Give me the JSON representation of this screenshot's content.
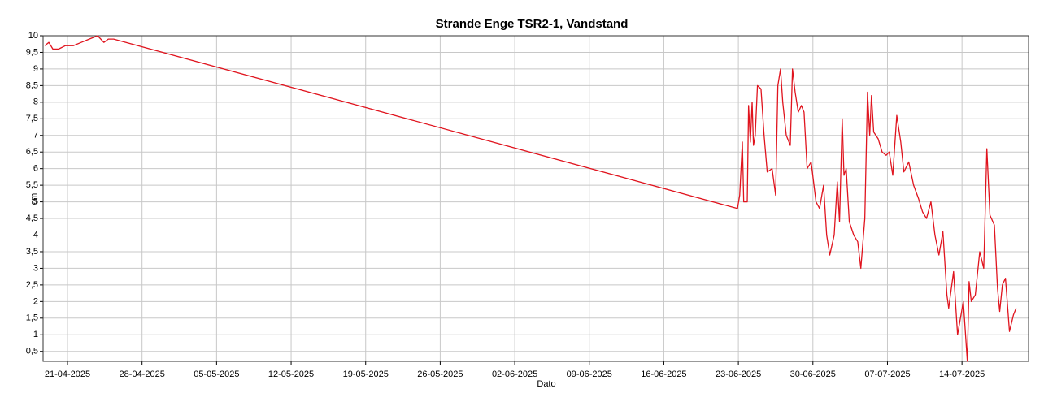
{
  "chart_data": {
    "type": "line",
    "title": "Strande Enge TSR2-1, Vandstand",
    "xlabel": "Dato",
    "ylabel": "cm",
    "x": [
      "2025-04-18T21:00",
      "2025-04-19T06:00",
      "2025-04-19T15:00",
      "2025-04-20T04:00",
      "2025-04-20T19:00",
      "2025-04-21T13:00",
      "2025-04-22T07:00",
      "2025-04-23T01:00",
      "2025-04-23T20:00",
      "2025-04-24T10:00",
      "2025-04-24T20:00",
      "2025-04-25T08:00",
      "2025-06-22T22:00",
      "2025-06-23T03:00",
      "2025-06-23T09:00",
      "2025-06-23T12:00",
      "2025-06-23T20:00",
      "2025-06-23T23:00",
      "2025-06-24T03:00",
      "2025-06-24T07:00",
      "2025-06-24T10:00",
      "2025-06-24T14:00",
      "2025-06-24T19:00",
      "2025-06-25T03:00",
      "2025-06-25T10:00",
      "2025-06-25T17:00",
      "2025-06-26T04:00",
      "2025-06-26T12:00",
      "2025-06-26T17:00",
      "2025-06-26T23:00",
      "2025-06-27T04:00",
      "2025-06-27T12:00",
      "2025-06-27T21:00",
      "2025-06-28T02:00",
      "2025-06-28T08:00",
      "2025-06-28T15:00",
      "2025-06-28T22:00",
      "2025-06-29T04:00",
      "2025-06-29T11:00",
      "2025-06-29T20:00",
      "2025-06-30T07:00",
      "2025-06-30T15:00",
      "2025-07-01T00:00",
      "2025-07-01T07:00",
      "2025-07-01T14:00",
      "2025-07-02T00:00",
      "2025-07-02T07:00",
      "2025-07-02T12:00",
      "2025-07-02T18:00",
      "2025-07-02T22:00",
      "2025-07-03T03:00",
      "2025-07-03T10:00",
      "2025-07-03T20:00",
      "2025-07-04T05:00",
      "2025-07-04T12:00",
      "2025-07-04T21:00",
      "2025-07-05T03:00",
      "2025-07-05T08:00",
      "2025-07-05T12:00",
      "2025-07-05T17:00",
      "2025-07-06T03:00",
      "2025-07-06T12:00",
      "2025-07-06T21:00",
      "2025-07-07T04:00",
      "2025-07-07T12:00",
      "2025-07-07T21:00",
      "2025-07-08T06:00",
      "2025-07-08T13:00",
      "2025-07-09T00:00",
      "2025-07-09T11:00",
      "2025-07-09T22:00",
      "2025-07-10T07:00",
      "2025-07-10T16:00",
      "2025-07-11T02:00",
      "2025-07-11T11:00",
      "2025-07-11T20:00",
      "2025-07-12T05:00",
      "2025-07-12T14:00",
      "2025-07-12T18:00",
      "2025-07-13T05:00",
      "2025-07-13T14:00",
      "2025-07-14T03:00",
      "2025-07-14T12:00",
      "2025-07-14T16:00",
      "2025-07-14T21:00",
      "2025-07-15T06:00",
      "2025-07-15T16:00",
      "2025-07-16T01:00",
      "2025-07-16T08:00",
      "2025-07-16T15:00",
      "2025-07-17T01:00",
      "2025-07-17T08:00",
      "2025-07-17T13:00",
      "2025-07-17T19:00",
      "2025-07-18T02:00",
      "2025-07-18T11:00",
      "2025-07-18T20:00",
      "2025-07-19T02:00"
    ],
    "series": [
      {
        "name": "Vandstand",
        "color": "#e0141e",
        "values": [
          9.7,
          9.8,
          9.6,
          9.6,
          9.7,
          9.7,
          9.8,
          9.9,
          10.0,
          9.8,
          9.9,
          9.9,
          4.8,
          5.2,
          6.8,
          5.0,
          5.0,
          7.9,
          6.8,
          8.0,
          6.7,
          7.0,
          8.5,
          8.4,
          7.0,
          5.9,
          6.0,
          5.2,
          8.5,
          9.0,
          8.0,
          7.0,
          6.7,
          9.0,
          8.3,
          7.7,
          7.9,
          7.7,
          6.0,
          6.2,
          5.0,
          4.8,
          5.5,
          4.0,
          3.4,
          4.0,
          5.6,
          4.4,
          7.5,
          5.8,
          6.0,
          4.4,
          4.0,
          3.8,
          3.0,
          4.5,
          8.3,
          7.0,
          8.2,
          7.1,
          6.9,
          6.5,
          6.4,
          6.5,
          5.8,
          7.6,
          6.8,
          5.9,
          6.2,
          5.5,
          5.1,
          4.7,
          4.5,
          5.0,
          4.0,
          3.4,
          4.1,
          2.2,
          1.8,
          2.9,
          1.0,
          2.0,
          0.2,
          2.6,
          2.0,
          2.2,
          3.5,
          3.0,
          6.6,
          4.6,
          4.3,
          2.4,
          1.7,
          2.5,
          2.7,
          1.1,
          1.6,
          1.8
        ]
      }
    ],
    "xlim": [
      "2025-04-18T17:00",
      "2025-07-20T06:00"
    ],
    "xticks": [
      {
        "value": "2025-04-21T00:00",
        "label": "21-04-2025"
      },
      {
        "value": "2025-04-28T00:00",
        "label": "28-04-2025"
      },
      {
        "value": "2025-05-05T00:00",
        "label": "05-05-2025"
      },
      {
        "value": "2025-05-12T00:00",
        "label": "12-05-2025"
      },
      {
        "value": "2025-05-19T00:00",
        "label": "19-05-2025"
      },
      {
        "value": "2025-05-26T00:00",
        "label": "26-05-2025"
      },
      {
        "value": "2025-06-02T00:00",
        "label": "02-06-2025"
      },
      {
        "value": "2025-06-09T00:00",
        "label": "09-06-2025"
      },
      {
        "value": "2025-06-16T00:00",
        "label": "16-06-2025"
      },
      {
        "value": "2025-06-23T00:00",
        "label": "23-06-2025"
      },
      {
        "value": "2025-06-30T00:00",
        "label": "30-06-2025"
      },
      {
        "value": "2025-07-07T00:00",
        "label": "07-07-2025"
      },
      {
        "value": "2025-07-14T00:00",
        "label": "14-07-2025"
      }
    ],
    "ylim": [
      0.2,
      10
    ],
    "yticks": [
      {
        "value": 0.5,
        "label": "0,5"
      },
      1,
      {
        "value": 1.5,
        "label": "1,5"
      },
      2,
      {
        "value": 2.5,
        "label": "2,5"
      },
      3,
      {
        "value": 3.5,
        "label": "3,5"
      },
      4,
      {
        "value": 4.5,
        "label": "4,5"
      },
      5,
      {
        "value": 5.5,
        "label": "5,5"
      },
      6,
      {
        "value": 6.5,
        "label": "6,5"
      },
      7,
      {
        "value": 7.5,
        "label": "7,5"
      },
      8,
      {
        "value": 8.5,
        "label": "8,5"
      },
      9,
      {
        "value": 9.5,
        "label": "9,5"
      },
      10
    ],
    "grid": true
  }
}
